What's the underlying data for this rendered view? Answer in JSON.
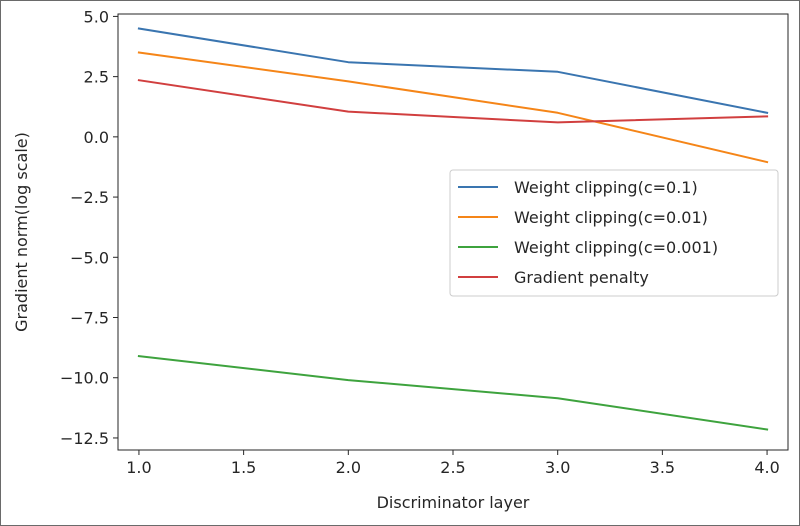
{
  "chart_data": {
    "type": "line",
    "title": "",
    "xlabel": "Discriminator layer",
    "ylabel": "Gradient norm(log scale)",
    "x": [
      1.0,
      2.0,
      3.0,
      4.0
    ],
    "xlim": [
      0.9,
      4.1
    ],
    "ylim": [
      -13.0,
      5.1
    ],
    "xticks": [
      1.0,
      1.5,
      2.0,
      2.5,
      3.0,
      3.5,
      4.0
    ],
    "xtick_labels": [
      "1.0",
      "1.5",
      "2.0",
      "2.5",
      "3.0",
      "3.5",
      "4.0"
    ],
    "yticks": [
      5.0,
      2.5,
      0.0,
      -2.5,
      -5.0,
      -7.5,
      -10.0,
      -12.5
    ],
    "ytick_labels": [
      "5.0",
      "2.5",
      "0.0",
      "−2.5",
      "−5.0",
      "−7.5",
      "−10.0",
      "−12.5"
    ],
    "grid": false,
    "legend_position": "center-right",
    "series": [
      {
        "name": "Weight clipping(c=0.1)",
        "color": "#3a75b0",
        "values": [
          4.5,
          3.1,
          2.7,
          1.0
        ]
      },
      {
        "name": "Weight clipping(c=0.01)",
        "color": "#f58518",
        "values": [
          3.5,
          2.3,
          1.0,
          -1.05
        ]
      },
      {
        "name": "Weight clipping(c=0.001)",
        "color": "#3ea33e",
        "values": [
          -9.1,
          -10.1,
          -10.85,
          -12.15
        ]
      },
      {
        "name": "Gradient penalty",
        "color": "#d13f3f",
        "values": [
          2.35,
          1.05,
          0.6,
          0.85
        ]
      }
    ]
  }
}
